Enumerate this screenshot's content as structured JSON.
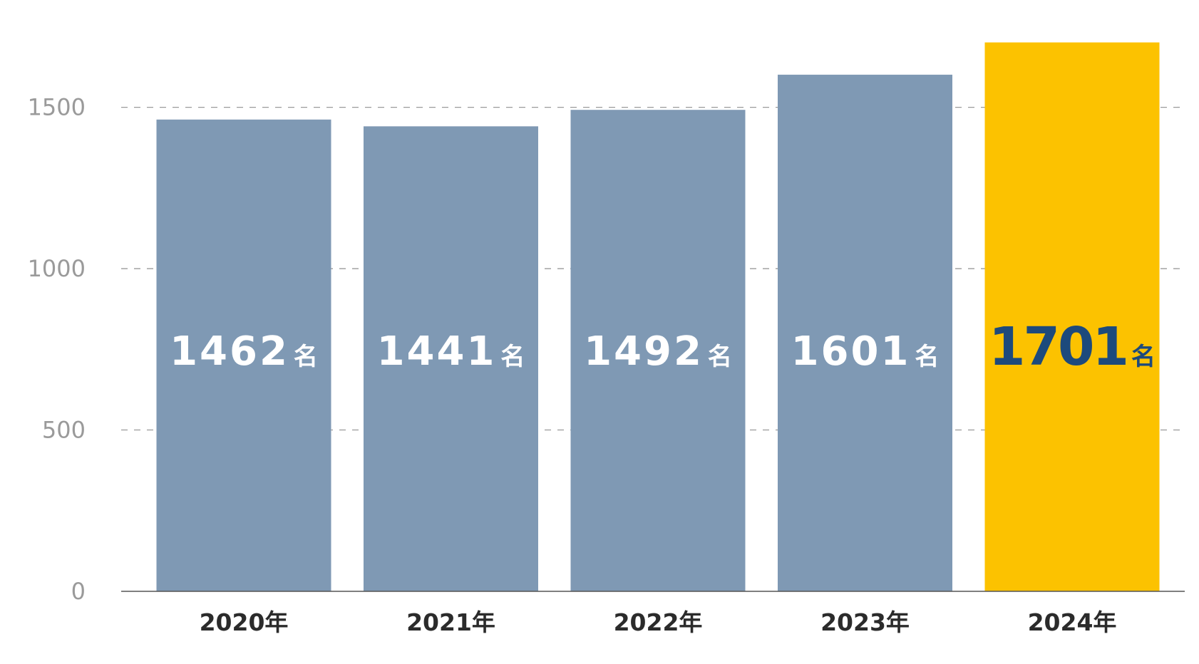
{
  "chart_data": {
    "type": "bar",
    "categories": [
      "2020年",
      "2021年",
      "2022年",
      "2023年",
      "2024年"
    ],
    "values": [
      1462,
      1441,
      1492,
      1601,
      1701
    ],
    "value_labels": [
      "1462",
      "1441",
      "1492",
      "1601",
      "1701"
    ],
    "value_unit": "名",
    "title": "",
    "xlabel": "",
    "ylabel": "",
    "ylim": [
      0,
      1700
    ],
    "yticks": [
      0,
      500,
      1000,
      1500
    ],
    "ytick_labels": [
      "0",
      "500",
      "1000",
      "1500"
    ],
    "grid": true,
    "grid_style": "dashed",
    "highlight_index": 4,
    "colors": {
      "bar": "#7f99b4",
      "highlight_bar": "#fcc200",
      "value_text": "#ffffff",
      "highlight_value_text": "#1d4a7c",
      "grid": "#9a9a9a",
      "axis": "#555555",
      "tick_text": "#9a9a9a",
      "category_text": "#2b2b2b"
    }
  }
}
